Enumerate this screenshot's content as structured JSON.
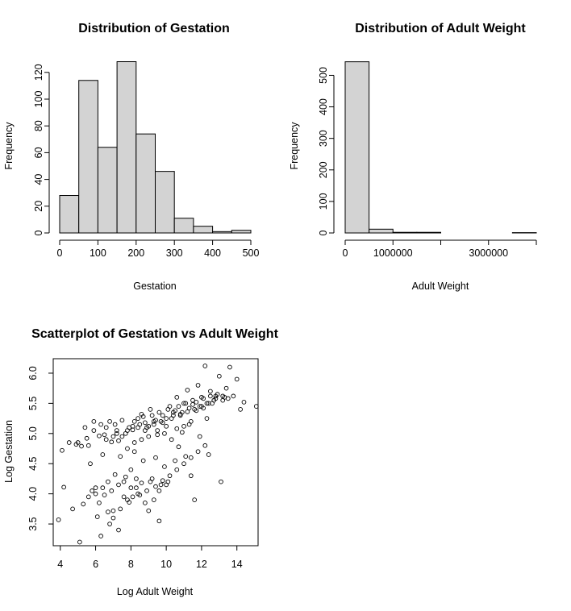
{
  "colors": {
    "bar_fill": "#d3d3d3",
    "stroke": "#000000",
    "background": "#ffffff"
  },
  "chart_data": [
    {
      "type": "bar",
      "subtype": "histogram",
      "title": "Distribution of Gestation",
      "xlabel": "Gestation",
      "ylabel": "Frequency",
      "bins": [
        [
          0,
          50
        ],
        [
          50,
          100
        ],
        [
          100,
          150
        ],
        [
          150,
          200
        ],
        [
          200,
          250
        ],
        [
          250,
          300
        ],
        [
          300,
          350
        ],
        [
          350,
          400
        ],
        [
          400,
          450
        ],
        [
          450,
          500
        ]
      ],
      "values": [
        28,
        114,
        64,
        128,
        74,
        46,
        11,
        5,
        1,
        2
      ],
      "xlim": [
        0,
        500
      ],
      "ylim": [
        0,
        130
      ],
      "xticks": [
        0,
        100,
        200,
        300,
        400,
        500
      ],
      "xtick_labels": [
        "0",
        "100",
        "200",
        "300",
        "400",
        "500"
      ],
      "yticks": [
        0,
        20,
        40,
        60,
        80,
        100,
        120
      ],
      "ytick_labels": [
        "0",
        "20",
        "40",
        "60",
        "80",
        "100",
        "120"
      ],
      "grid": false
    },
    {
      "type": "bar",
      "subtype": "histogram",
      "title": "Distribution of Adult Weight",
      "xlabel": "Adult Weight",
      "ylabel": "Frequency",
      "bins": [
        [
          0,
          500000
        ],
        [
          500000,
          1000000
        ],
        [
          1000000,
          1500000
        ],
        [
          1500000,
          2000000
        ],
        [
          2000000,
          2500000
        ],
        [
          2500000,
          3000000
        ],
        [
          3000000,
          3500000
        ],
        [
          3500000,
          4000000
        ]
      ],
      "values": [
        543,
        12,
        2,
        2,
        0,
        0,
        0,
        1
      ],
      "xlim": [
        0,
        4000000
      ],
      "ylim": [
        0,
        550
      ],
      "xticks": [
        0,
        1000000,
        2000000,
        3000000,
        4000000
      ],
      "xtick_labels": [
        "0",
        "1000000",
        "",
        "3000000",
        ""
      ],
      "yticks": [
        0,
        100,
        200,
        300,
        400,
        500
      ],
      "ytick_labels": [
        "0",
        "100",
        "200",
        "300",
        "400",
        "500"
      ],
      "grid": false
    },
    {
      "type": "scatter",
      "title": "Scatterplot of Gestation vs Adult Weight",
      "xlabel": "Log Adult Weight",
      "ylabel": "Log Gestation",
      "xlim": [
        3.6,
        15.2
      ],
      "ylim": [
        3.14,
        6.24
      ],
      "xticks": [
        4,
        6,
        8,
        10,
        12,
        14
      ],
      "xtick_labels": [
        "4",
        "6",
        "8",
        "10",
        "12",
        "14"
      ],
      "yticks": [
        3.5,
        4.0,
        4.5,
        5.0,
        5.5,
        6.0
      ],
      "ytick_labels": [
        "3.5",
        "4.0",
        "4.5",
        "5.0",
        "5.5",
        "6.0"
      ],
      "grid": false,
      "points": [
        [
          3.9,
          3.57
        ],
        [
          4.1,
          4.72
        ],
        [
          4.2,
          4.11
        ],
        [
          4.7,
          3.75
        ],
        [
          4.9,
          4.82
        ],
        [
          5.0,
          4.85
        ],
        [
          5.1,
          3.2
        ],
        [
          5.2,
          4.79
        ],
        [
          5.3,
          3.83
        ],
        [
          5.5,
          4.92
        ],
        [
          5.6,
          4.8
        ],
        [
          5.7,
          4.5
        ],
        [
          5.8,
          4.05
        ],
        [
          5.9,
          5.05
        ],
        [
          6.0,
          4.1
        ],
        [
          6.1,
          3.62
        ],
        [
          6.2,
          4.96
        ],
        [
          6.3,
          3.3
        ],
        [
          6.4,
          4.65
        ],
        [
          6.5,
          3.98
        ],
        [
          6.6,
          5.1
        ],
        [
          6.7,
          4.2
        ],
        [
          6.8,
          3.5
        ],
        [
          6.9,
          4.86
        ],
        [
          7.0,
          3.72
        ],
        [
          7.1,
          4.32
        ],
        [
          7.2,
          5.0
        ],
        [
          7.3,
          3.4
        ],
        [
          7.4,
          4.62
        ],
        [
          7.5,
          4.95
        ],
        [
          7.6,
          3.95
        ],
        [
          7.7,
          4.28
        ],
        [
          7.8,
          5.05
        ],
        [
          7.9,
          3.86
        ],
        [
          8.0,
          4.4
        ],
        [
          8.1,
          5.12
        ],
        [
          8.2,
          4.7
        ],
        [
          8.3,
          4.1
        ],
        [
          8.4,
          5.25
        ],
        [
          8.5,
          3.98
        ],
        [
          8.6,
          5.32
        ],
        [
          8.7,
          4.55
        ],
        [
          8.8,
          5.18
        ],
        [
          8.9,
          4.05
        ],
        [
          9.0,
          3.72
        ],
        [
          9.1,
          5.4
        ],
        [
          9.2,
          4.25
        ],
        [
          9.3,
          5.2
        ],
        [
          9.4,
          4.6
        ],
        [
          9.5,
          5.05
        ],
        [
          9.6,
          3.55
        ],
        [
          9.7,
          4.15
        ],
        [
          9.8,
          5.3
        ],
        [
          9.9,
          4.45
        ],
        [
          10.0,
          5.12
        ],
        [
          10.1,
          4.2
        ],
        [
          10.2,
          5.45
        ],
        [
          10.3,
          4.9
        ],
        [
          10.4,
          5.35
        ],
        [
          10.5,
          4.55
        ],
        [
          10.6,
          5.6
        ],
        [
          10.7,
          4.78
        ],
        [
          10.8,
          5.3
        ],
        [
          10.9,
          5.02
        ],
        [
          11.0,
          5.5
        ],
        [
          11.1,
          4.62
        ],
        [
          11.2,
          5.72
        ],
        [
          11.3,
          5.15
        ],
        [
          11.4,
          4.3
        ],
        [
          11.5,
          5.55
        ],
        [
          11.6,
          3.9
        ],
        [
          11.7,
          5.38
        ],
        [
          11.8,
          5.8
        ],
        [
          11.9,
          4.95
        ],
        [
          12.0,
          5.6
        ],
        [
          12.1,
          5.42
        ],
        [
          12.2,
          6.12
        ],
        [
          12.3,
          5.25
        ],
        [
          12.4,
          4.65
        ],
        [
          12.5,
          5.7
        ],
        [
          12.6,
          5.5
        ],
        [
          12.8,
          5.62
        ],
        [
          13.0,
          5.95
        ],
        [
          13.1,
          4.2
        ],
        [
          13.2,
          5.55
        ],
        [
          13.4,
          5.75
        ],
        [
          13.6,
          6.1
        ],
        [
          13.8,
          5.62
        ],
        [
          14.0,
          5.9
        ],
        [
          14.2,
          5.4
        ],
        [
          14.4,
          5.52
        ],
        [
          15.1,
          5.45
        ],
        [
          6.3,
          5.15
        ],
        [
          6.8,
          5.2
        ],
        [
          7.1,
          5.15
        ],
        [
          7.5,
          5.22
        ],
        [
          7.9,
          5.1
        ],
        [
          8.2,
          5.2
        ],
        [
          8.5,
          5.15
        ],
        [
          8.7,
          5.28
        ],
        [
          8.9,
          5.1
        ],
        [
          9.2,
          5.3
        ],
        [
          9.4,
          5.22
        ],
        [
          9.6,
          5.35
        ],
        [
          9.8,
          5.18
        ],
        [
          10.1,
          5.4
        ],
        [
          10.3,
          5.25
        ],
        [
          10.5,
          5.38
        ],
        [
          10.7,
          5.45
        ],
        [
          10.9,
          5.35
        ],
        [
          11.1,
          5.5
        ],
        [
          11.3,
          5.42
        ],
        [
          11.5,
          5.48
        ],
        [
          11.7,
          5.52
        ],
        [
          11.9,
          5.45
        ],
        [
          12.1,
          5.58
        ],
        [
          12.3,
          5.5
        ],
        [
          12.5,
          5.62
        ],
        [
          12.7,
          5.55
        ],
        [
          12.9,
          5.65
        ],
        [
          13.3,
          5.6
        ],
        [
          13.5,
          5.58
        ],
        [
          6.5,
          4.98
        ],
        [
          7.2,
          5.05
        ],
        [
          7.7,
          5.0
        ],
        [
          8.1,
          5.06
        ],
        [
          8.4,
          5.1
        ],
        [
          8.8,
          5.05
        ],
        [
          9.0,
          5.12
        ],
        [
          9.3,
          5.15
        ],
        [
          9.7,
          5.2
        ],
        [
          10.0,
          5.25
        ],
        [
          10.4,
          5.3
        ],
        [
          10.8,
          5.32
        ],
        [
          11.2,
          5.36
        ],
        [
          11.6,
          5.4
        ],
        [
          12.0,
          5.45
        ],
        [
          12.4,
          5.5
        ],
        [
          12.8,
          5.58
        ],
        [
          13.2,
          5.62
        ],
        [
          6.0,
          4.0
        ],
        [
          6.4,
          4.1
        ],
        [
          6.9,
          4.05
        ],
        [
          7.3,
          4.15
        ],
        [
          7.6,
          4.2
        ],
        [
          8.0,
          4.1
        ],
        [
          8.3,
          4.25
        ],
        [
          8.6,
          4.18
        ],
        [
          9.1,
          4.2
        ],
        [
          9.4,
          4.12
        ],
        [
          9.8,
          4.22
        ],
        [
          10.2,
          4.3
        ],
        [
          10.6,
          4.4
        ],
        [
          11.0,
          4.5
        ],
        [
          11.4,
          4.6
        ],
        [
          11.8,
          4.7
        ],
        [
          12.2,
          4.8
        ],
        [
          5.6,
          3.95
        ],
        [
          6.2,
          3.85
        ],
        [
          6.7,
          3.7
        ],
        [
          7.0,
          3.6
        ],
        [
          7.4,
          3.75
        ],
        [
          7.8,
          3.9
        ],
        [
          8.1,
          3.95
        ],
        [
          8.4,
          4.0
        ],
        [
          8.8,
          3.85
        ],
        [
          9.3,
          3.9
        ],
        [
          9.6,
          4.05
        ],
        [
          10.0,
          4.15
        ],
        [
          4.5,
          4.85
        ],
        [
          5.4,
          5.1
        ],
        [
          5.9,
          5.2
        ],
        [
          6.6,
          4.9
        ],
        [
          7.0,
          4.95
        ],
        [
          7.3,
          4.88
        ],
        [
          7.8,
          4.75
        ],
        [
          8.2,
          4.85
        ],
        [
          8.6,
          4.9
        ],
        [
          9.0,
          4.95
        ],
        [
          9.5,
          4.98
        ],
        [
          9.9,
          5.0
        ],
        [
          10.6,
          5.08
        ],
        [
          11.0,
          5.12
        ],
        [
          11.4,
          5.2
        ]
      ]
    }
  ]
}
